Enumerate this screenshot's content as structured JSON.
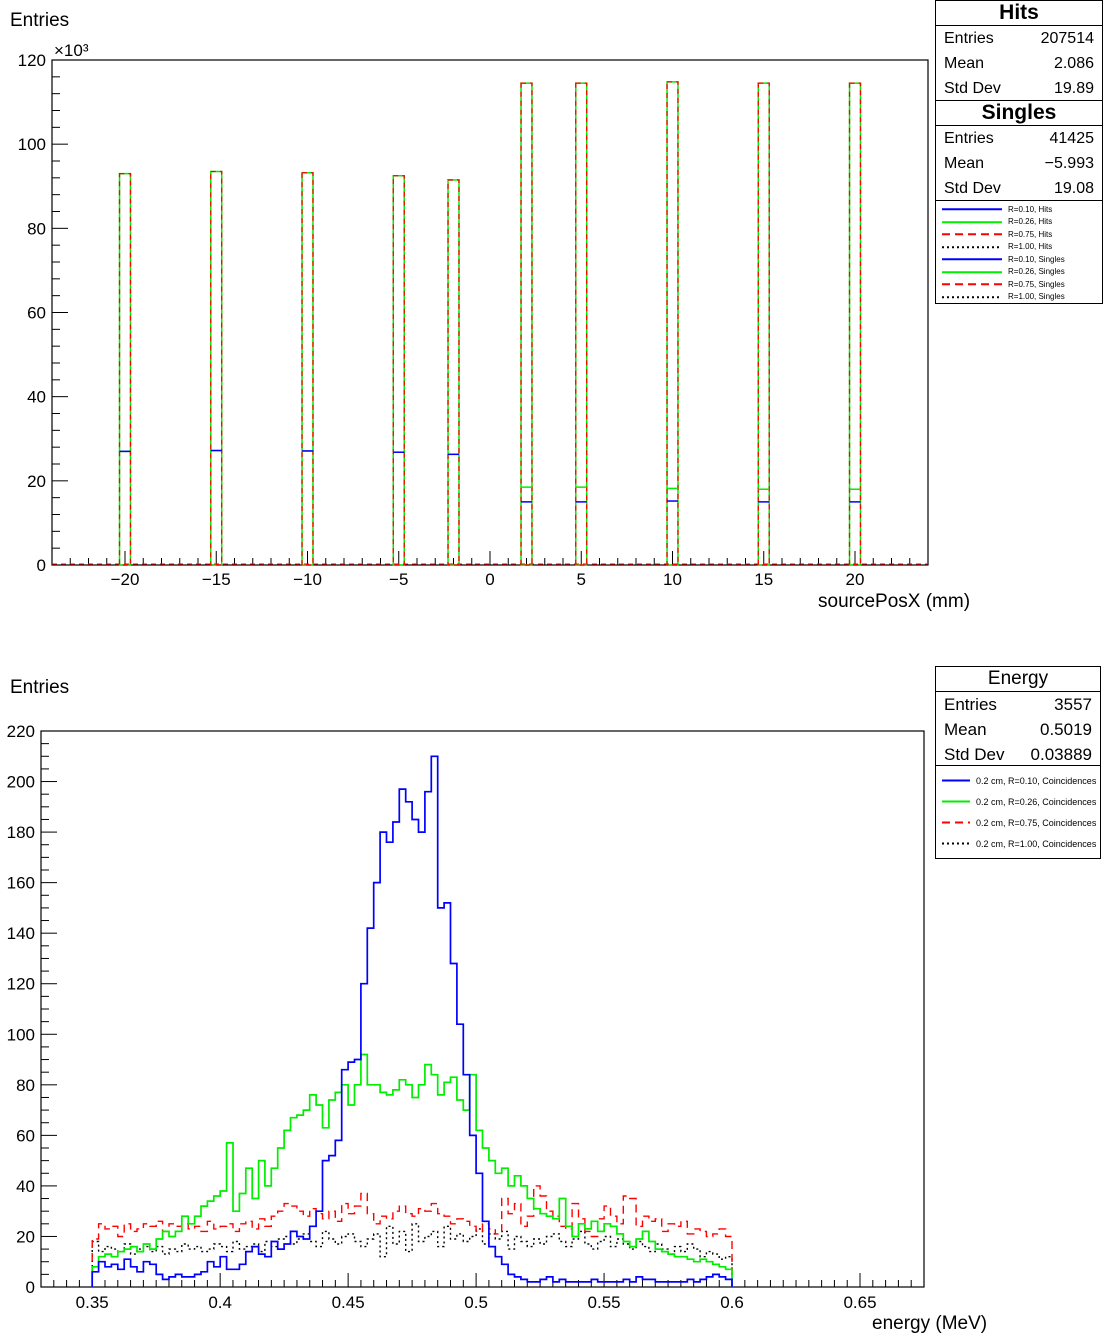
{
  "chart_data": [
    {
      "type": "bar",
      "xlabel": "sourcePosX (mm)",
      "ylabel": "Entries",
      "yscale_label": "×10³",
      "xlim": [
        -24,
        24
      ],
      "ylim": [
        0,
        120
      ],
      "xticks": [
        "−20",
        "−15",
        "−10",
        "−5",
        "0",
        "5",
        "10",
        "15",
        "20"
      ],
      "xtick_values": [
        -20,
        -15,
        -10,
        -5,
        0,
        5,
        10,
        15,
        20
      ],
      "yticks": [
        "0",
        "20",
        "40",
        "60",
        "80",
        "100",
        "120"
      ],
      "ytick_values": [
        0,
        20,
        40,
        60,
        80,
        100,
        120
      ],
      "peaks": [
        {
          "x": -20,
          "hits": 93.0,
          "singles_r010": 27.0,
          "singles_r026": 27.0
        },
        {
          "x": -15,
          "hits": 93.5,
          "singles_r010": 27.2,
          "singles_r026": 27.2
        },
        {
          "x": -10,
          "hits": 93.2,
          "singles_r010": 27.1,
          "singles_r026": 27.1
        },
        {
          "x": -5,
          "hits": 92.5,
          "singles_r010": 26.8,
          "singles_r026": 26.8
        },
        {
          "x": -2,
          "hits": 91.5,
          "singles_r010": 26.3,
          "singles_r026": 26.3
        },
        {
          "x": 2,
          "hits": 114.5,
          "singles_r010": 15.0,
          "singles_r026": 18.5
        },
        {
          "x": 5,
          "hits": 114.5,
          "singles_r010": 15.0,
          "singles_r026": 18.5
        },
        {
          "x": 10,
          "hits": 114.8,
          "singles_r010": 15.2,
          "singles_r026": 18.2
        },
        {
          "x": 15,
          "hits": 114.5,
          "singles_r010": 15.0,
          "singles_r026": 18.0
        },
        {
          "x": 20,
          "hits": 114.5,
          "singles_r010": 15.0,
          "singles_r026": 18.0
        }
      ],
      "stats": [
        {
          "title": "Hits",
          "rows": [
            [
              "Entries",
              "207514"
            ],
            [
              "Mean",
              "2.086"
            ],
            [
              "Std Dev",
              "19.89"
            ]
          ]
        },
        {
          "title": "Singles",
          "rows": [
            [
              "Entries",
              "41425"
            ],
            [
              "Mean",
              "−5.993"
            ],
            [
              "Std Dev",
              "19.08"
            ]
          ]
        }
      ],
      "legend": {
        "entries": [
          {
            "label": "R=0.10, Hits",
            "color": "#0000ff",
            "style": "solid"
          },
          {
            "label": "R=0.26, Hits",
            "color": "#00ee00",
            "style": "solid"
          },
          {
            "label": "R=0.75, Hits",
            "color": "#ff0000",
            "style": "dashed"
          },
          {
            "label": "R=1.00, Hits",
            "color": "#000000",
            "style": "dotted"
          },
          {
            "label": "R=0.10, Singles",
            "color": "#0000ff",
            "style": "solid"
          },
          {
            "label": "R=0.26, Singles",
            "color": "#00ee00",
            "style": "solid"
          },
          {
            "label": "R=0.75, Singles",
            "color": "#ff0000",
            "style": "dashed"
          },
          {
            "label": "R=1.00, Singles",
            "color": "#000000",
            "style": "dotted"
          }
        ]
      }
    },
    {
      "type": "line",
      "xlabel": "energy (MeV)",
      "ylabel": "Entries",
      "xlim": [
        0.33,
        0.675
      ],
      "ylim": [
        0,
        220
      ],
      "xticks": [
        "0.35",
        "0.4",
        "0.45",
        "0.5",
        "0.55",
        "0.6",
        "0.65"
      ],
      "xtick_values": [
        0.35,
        0.4,
        0.45,
        0.5,
        0.55,
        0.6,
        0.65
      ],
      "yticks": [
        "0",
        "20",
        "40",
        "60",
        "80",
        "100",
        "120",
        "140",
        "160",
        "180",
        "200",
        "220"
      ],
      "ytick_values": [
        0,
        20,
        40,
        60,
        80,
        100,
        120,
        140,
        160,
        180,
        200,
        220
      ],
      "bin_start": 0.35,
      "bin_width": 0.0025,
      "stats": {
        "title": "Energy",
        "rows": [
          [
            "Entries",
            "3557"
          ],
          [
            "Mean",
            "0.5019"
          ],
          [
            "Std Dev",
            "0.03889"
          ]
        ]
      },
      "series": [
        {
          "name": "0.2 cm, R=0.10, Coincidences",
          "color": "#0000ff",
          "style": "solid",
          "values": [
            6,
            10,
            8,
            9,
            7,
            11,
            8,
            6,
            10,
            9,
            5,
            3,
            4,
            5,
            4,
            4,
            5,
            6,
            10,
            8,
            12,
            7,
            7,
            9,
            14,
            16,
            13,
            12,
            18,
            15,
            17,
            22,
            20,
            19,
            24,
            30,
            50,
            52,
            58,
            86,
            89,
            90,
            120,
            142,
            160,
            180,
            176,
            184,
            197,
            192,
            185,
            180,
            196,
            210,
            150,
            152,
            128,
            104,
            84,
            60,
            45,
            26,
            16,
            12,
            9,
            5,
            4,
            3,
            2,
            2,
            3,
            4,
            2,
            3,
            2,
            2,
            2,
            2,
            3,
            2,
            2,
            2,
            2,
            3,
            2,
            4,
            3,
            3,
            2,
            2,
            2,
            2,
            2,
            3,
            2,
            3,
            4,
            5,
            4,
            3
          ]
        },
        {
          "name": "0.2 cm, R=0.26, Coincidences",
          "color": "#00ee00",
          "style": "solid",
          "values": [
            8,
            12,
            13,
            12,
            14,
            15,
            16,
            14,
            17,
            15,
            19,
            22,
            20,
            22,
            28,
            25,
            28,
            32,
            34,
            36,
            38,
            57,
            30,
            37,
            47,
            35,
            50,
            40,
            47,
            55,
            62,
            67,
            68,
            70,
            76,
            72,
            63,
            74,
            77,
            80,
            72,
            80,
            92,
            80,
            80,
            77,
            76,
            78,
            82,
            80,
            75,
            80,
            88,
            84,
            76,
            81,
            83,
            74,
            70,
            84,
            62,
            55,
            50,
            45,
            47,
            40,
            44,
            40,
            35,
            31,
            29,
            28,
            27,
            35,
            24,
            20,
            25,
            23,
            26,
            22,
            25,
            24,
            21,
            18,
            16,
            19,
            22,
            18,
            15,
            14,
            13,
            12,
            12,
            11,
            10,
            11,
            10,
            9,
            8,
            7
          ]
        },
        {
          "name": "0.2 cm, R=0.75, Coincidences",
          "color": "#ff0000",
          "style": "dashed",
          "values": [
            19,
            25,
            23,
            24,
            20,
            25,
            22,
            23,
            25,
            24,
            26,
            22,
            25,
            24,
            25,
            23,
            24,
            22,
            26,
            23,
            24,
            25,
            22,
            25,
            26,
            23,
            27,
            24,
            28,
            30,
            33,
            32,
            30,
            28,
            31,
            29,
            27,
            30,
            26,
            33,
            29,
            32,
            37,
            29,
            25,
            28,
            27,
            30,
            32,
            29,
            28,
            31,
            30,
            33,
            29,
            28,
            25,
            27,
            26,
            24,
            22,
            25,
            23,
            21,
            35,
            29,
            33,
            24,
            28,
            40,
            36,
            30,
            28,
            24,
            23,
            33,
            27,
            22,
            20,
            27,
            32,
            28,
            25,
            36,
            35,
            24,
            28,
            26,
            27,
            22,
            25,
            24,
            26,
            21,
            23,
            22,
            20,
            21,
            23,
            20
          ]
        },
        {
          "name": "0.2 cm, R=1.00, Coincidences",
          "color": "#000000",
          "style": "dotted",
          "values": [
            18,
            14,
            16,
            15,
            14,
            17,
            13,
            15,
            16,
            14,
            16,
            13,
            15,
            14,
            17,
            15,
            16,
            14,
            15,
            17,
            16,
            14,
            18,
            15,
            16,
            17,
            14,
            18,
            16,
            19,
            20,
            17,
            19,
            21,
            18,
            16,
            22,
            19,
            17,
            20,
            21,
            18,
            16,
            19,
            21,
            12,
            24,
            17,
            22,
            14,
            25,
            18,
            20,
            22,
            16,
            24,
            19,
            21,
            18,
            20,
            23,
            17,
            21,
            19,
            22,
            15,
            20,
            18,
            16,
            19,
            17,
            20,
            21,
            18,
            16,
            19,
            22,
            17,
            15,
            18,
            20,
            16,
            19,
            17,
            15,
            18,
            16,
            14,
            17,
            15,
            13,
            16,
            14,
            17,
            15,
            12,
            14,
            13,
            11,
            12
          ]
        }
      ]
    }
  ]
}
